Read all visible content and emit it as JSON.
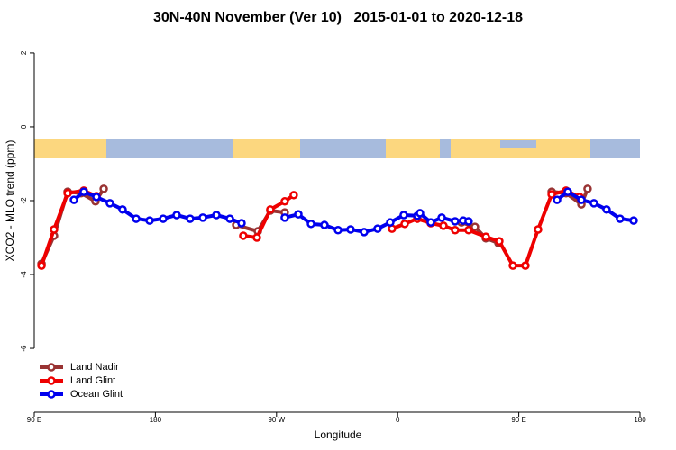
{
  "chart_data": {
    "type": "line",
    "title": "30N-40N November (Ver 10)   2015-01-01 to 2020-12-18",
    "x_label": "Longitude",
    "y_label": "XCO2 - MLO trend (ppm)",
    "xlim": [
      90,
      540
    ],
    "ylim": [
      -7.73,
      2.51
    ],
    "xticks": [
      {
        "value": 90,
        "label": "90 E"
      },
      180,
      {
        "value": 270,
        "label": "90 W"
      },
      {
        "value": 360,
        "label": "0"
      },
      {
        "value": 450,
        "label": "90 E"
      },
      {
        "value": 540,
        "label": "180"
      }
    ],
    "yticks": [
      -6,
      -4,
      -2,
      0,
      2
    ],
    "legend": "bottom-left",
    "series": [
      {
        "name": "Land Nadir",
        "color": "#993333",
        "x": [
          95.4,
          104.7,
          114.8,
          124.8,
          135.5,
          141.6,
          null,
          240.0,
          256.1,
          265.4,
          276.1,
          null,
          407.4,
          417.4,
          425.5,
          434.9,
          null,
          474.4,
          485.1,
          496.5,
          501.1
        ],
        "values": [
          -3.71,
          -2.95,
          -1.76,
          -1.8,
          -2.02,
          -1.68,
          null,
          -2.66,
          -2.83,
          -2.27,
          -2.32,
          null,
          -2.59,
          -2.71,
          -3.02,
          -3.15,
          null,
          -1.76,
          -1.8,
          -2.1,
          -1.68
        ]
      },
      {
        "name": "Land Glint",
        "color": "#ee0000",
        "x": [
          95.4,
          104.7,
          114.8,
          126.8,
          136.2,
          null,
          245.3,
          255.4,
          265.4,
          276.1,
          282.8,
          null,
          355.8,
          365.2,
          374.6,
          384.6,
          394.0,
          402.7,
          412.7,
          425.5,
          435.5,
          445.6,
          454.9,
          464.3,
          474.4,
          485.1,
          495.1
        ],
        "values": [
          -3.76,
          -2.78,
          -1.8,
          -1.73,
          -1.88,
          null,
          -2.95,
          -3.0,
          -2.24,
          -2.02,
          -1.85,
          null,
          -2.76,
          -2.63,
          -2.49,
          -2.61,
          -2.68,
          -2.8,
          -2.8,
          -2.98,
          -3.1,
          -3.76,
          -3.76,
          -2.78,
          -1.83,
          -1.73,
          -1.9
        ]
      },
      {
        "name": "Ocean Glint",
        "color": "#0000ee",
        "x": [
          119.5,
          126.8,
          136.2,
          146.2,
          155.6,
          165.7,
          175.7,
          185.8,
          195.8,
          205.8,
          215.2,
          225.3,
          235.3,
          244.0,
          null,
          276.1,
          286.2,
          295.6,
          305.6,
          315.7,
          325.0,
          335.1,
          345.1,
          354.5,
          364.5,
          374.6,
          376.6,
          384.6,
          392.7,
          402.7,
          408.7,
          412.7,
          null,
          478.4,
          486.4,
          496.5,
          505.8,
          515.2,
          525.2,
          535.3
        ],
        "values": [
          -1.98,
          -1.76,
          -1.9,
          -2.07,
          -2.24,
          -2.49,
          -2.54,
          -2.49,
          -2.39,
          -2.49,
          -2.46,
          -2.39,
          -2.49,
          -2.61,
          null,
          -2.46,
          -2.37,
          -2.63,
          -2.66,
          -2.8,
          -2.78,
          -2.85,
          -2.76,
          -2.59,
          -2.39,
          -2.41,
          -2.34,
          -2.59,
          -2.46,
          -2.56,
          -2.54,
          -2.56,
          null,
          -1.98,
          -1.76,
          -1.98,
          -2.07,
          -2.24,
          -2.49,
          -2.54
        ]
      }
    ]
  }
}
